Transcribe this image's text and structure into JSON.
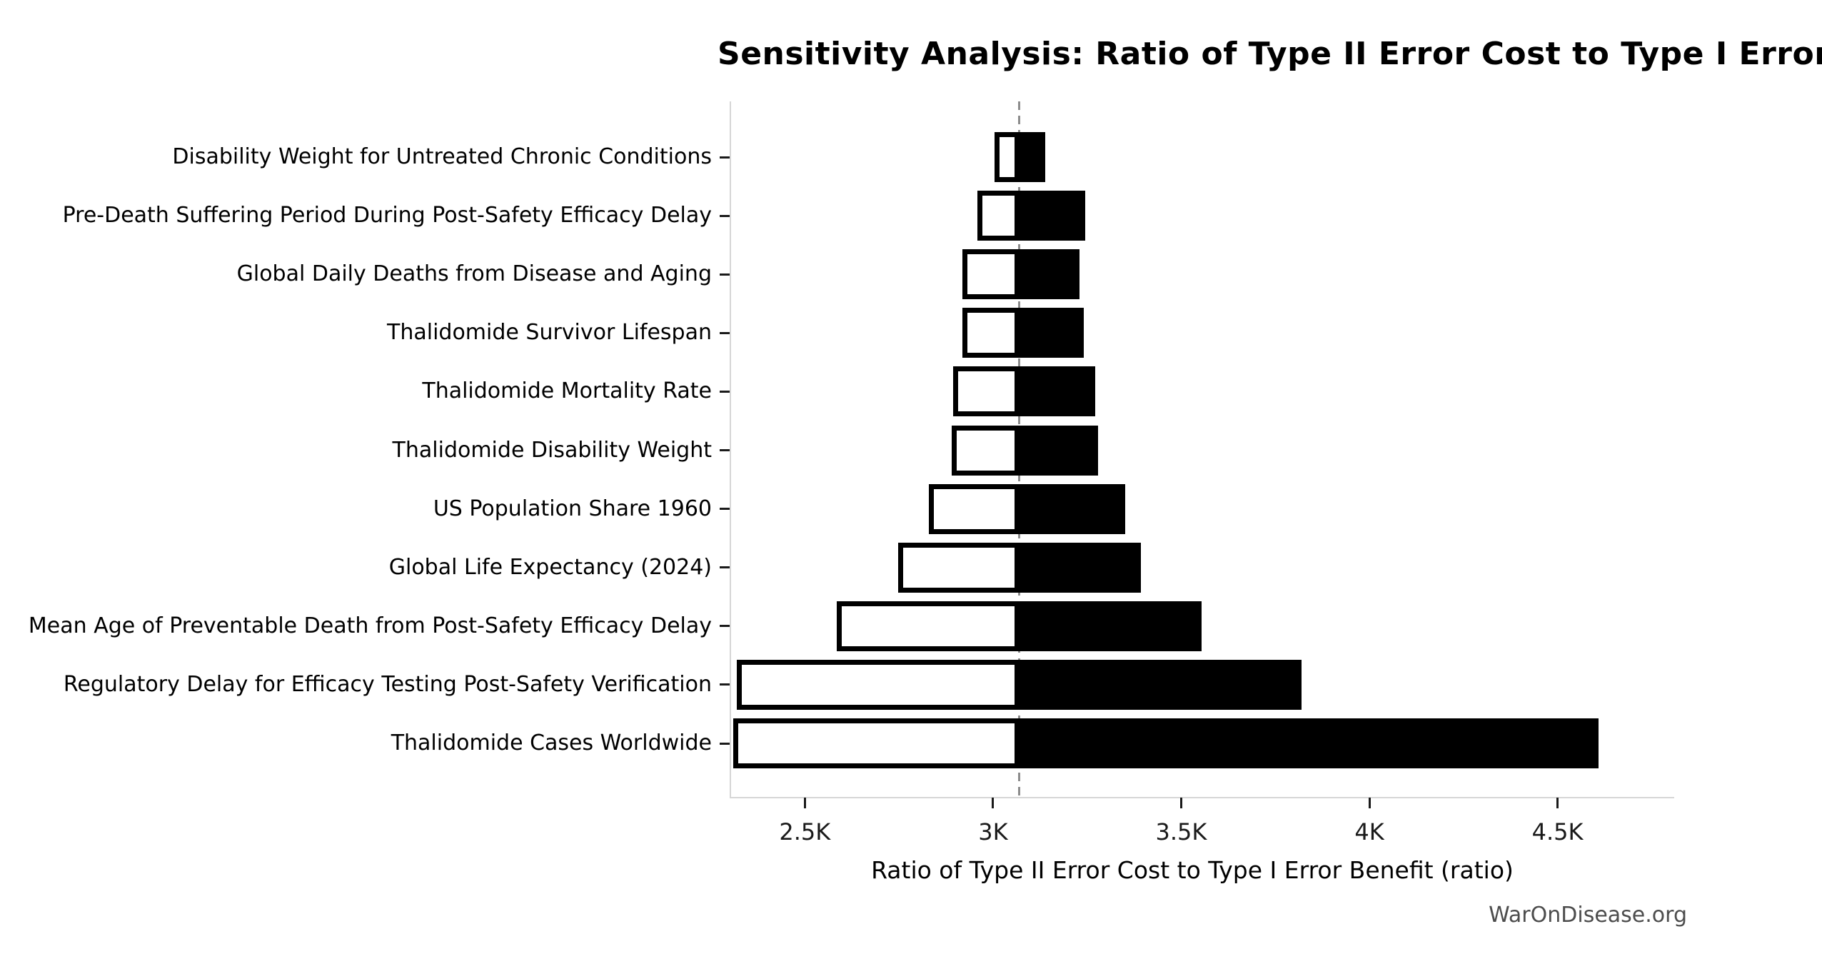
{
  "watermark": {
    "text": "WarOnDisease.org"
  },
  "chart_data": {
    "type": "bar",
    "subtype": "tornado-sensitivity",
    "orientation": "horizontal",
    "title": "Sensitivity Analysis: Ratio of Type II Error Cost to Type I Error Benefit",
    "xlabel": "Ratio of Type II Error Cost to Type I Error Benefit (ratio)",
    "ylabel": "",
    "baseline": 3070,
    "xlim": [
      2304,
      4810
    ],
    "grid": "off",
    "legend": "none",
    "x_ticks": [
      {
        "value": 2500,
        "label": "2.5K"
      },
      {
        "value": 3000,
        "label": "3K"
      },
      {
        "value": 3500,
        "label": "3.5K"
      },
      {
        "value": 4000,
        "label": "4K"
      },
      {
        "value": 4500,
        "label": "4.5K"
      }
    ],
    "categories": [
      "Disability Weight for Untreated Chronic Conditions",
      "Pre-Death Suffering Period During Post-Safety Efficacy Delay",
      "Global Daily Deaths from Disease and Aging",
      "Thalidomide Survivor Lifespan",
      "Thalidomide Mortality Rate",
      "Thalidomide Disability Weight",
      "US Population Share 1960",
      "Global Life Expectancy (2024)",
      "Mean Age of Preventable Death from Post-Safety Efficacy Delay",
      "Regulatory Delay for Efficacy Testing Post-Safety Verification",
      "Thalidomide Cases Worldwide"
    ],
    "series": [
      {
        "name": "low_estimate",
        "values": [
          3004,
          2959,
          2919,
          2919,
          2894,
          2891,
          2830,
          2747,
          2584,
          2320,
          2309
        ]
      },
      {
        "name": "high_estimate",
        "values": [
          3139,
          3245,
          3229,
          3242,
          3272,
          3279,
          3352,
          3393,
          3554,
          3820,
          4609
        ]
      }
    ],
    "colors": {
      "low_fill": "#ffffff",
      "high_fill": "#000000",
      "bar_edge": "#000000",
      "baseline_line": "#8c8c8c",
      "spine": "#d6d6d6",
      "tick": "#1a1a1a",
      "text": "#000000",
      "watermark": "#4d4d4d",
      "background": "#ffffff"
    }
  }
}
